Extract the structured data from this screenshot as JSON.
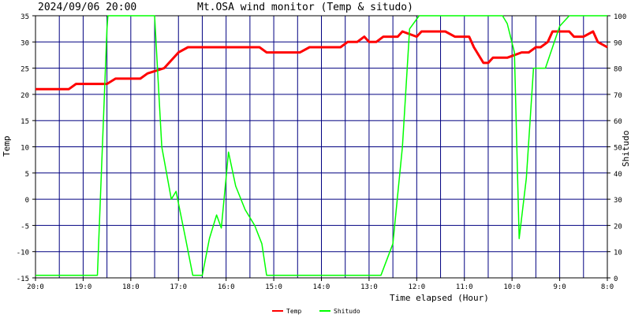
{
  "header": {
    "datetime": "2024/09/06 20:00",
    "title": "Mt.OSA wind monitor (Temp & situdo)"
  },
  "legend": {
    "items": [
      {
        "label": "Temp",
        "color": "#ff0000"
      },
      {
        "label": "Shitudo",
        "color": "#00ff00"
      }
    ]
  },
  "chart_data": {
    "type": "line",
    "title": "Mt.OSA wind monitor (Temp & situdo)",
    "xlabel": "Time elapsed (Hour)",
    "ylabel_left": "Temp",
    "ylabel_right": "Shitudo",
    "x_tick_labels": [
      "20:0",
      "19:0",
      "18:0",
      "17:0",
      "16:0",
      "15:0",
      "14:0",
      "13:0",
      "12:0",
      "11:0",
      "10:0",
      "9:0",
      "8:0"
    ],
    "xlim": [
      0,
      12
    ],
    "x_reversed_note": "",
    "ylim_left": [
      -15,
      35
    ],
    "y_ticks_left": [
      -15,
      -10,
      -5,
      0,
      5,
      10,
      15,
      20,
      25,
      30,
      35
    ],
    "ylim_right": [
      0,
      100
    ],
    "y_ticks_right": [
      0,
      10,
      20,
      30,
      40,
      50,
      60,
      70,
      80,
      90,
      100
    ],
    "grid": true,
    "legend_position": "bottom",
    "series": [
      {
        "name": "Temp",
        "axis": "left",
        "color": "#ff0000",
        "x": [
          0,
          0.7,
          0.85,
          1.5,
          1.68,
          2.2,
          2.35,
          2.7,
          3.0,
          3.2,
          3.65,
          4.1,
          4.2,
          4.7,
          4.85,
          5.1,
          5.3,
          5.55,
          5.75,
          5.9,
          6.0,
          6.15,
          6.25,
          6.4,
          6.55,
          6.75,
          6.9,
          7.0,
          7.15,
          7.3,
          7.5,
          7.55,
          7.6,
          7.7,
          8.0,
          8.1,
          8.3,
          8.5,
          8.6,
          8.8,
          8.9,
          9.1,
          9.2,
          9.4,
          9.5,
          9.6,
          9.7,
          9.8,
          9.9,
          10.2,
          10.35,
          10.5,
          10.6,
          10.75,
          10.85,
          11.0,
          11.2,
          11.3,
          11.5,
          11.7,
          11.8,
          12.0
        ],
        "y": [
          21,
          21,
          22,
          22,
          23,
          23,
          24,
          25,
          28,
          29,
          29,
          29,
          29,
          29,
          28,
          28,
          28,
          28,
          29,
          29,
          29,
          29,
          29,
          29,
          30,
          30,
          31,
          30,
          30,
          31,
          31,
          31,
          31,
          32,
          31,
          32,
          32,
          32,
          32,
          31,
          31,
          31,
          29,
          26,
          26,
          27,
          27,
          27,
          27,
          28,
          28,
          29,
          29,
          30,
          32,
          32,
          32,
          31,
          31,
          32,
          30,
          29
        ]
      },
      {
        "name": "Shitudo",
        "axis": "right",
        "color": "#00ff00",
        "x": [
          0,
          1.3,
          1.5,
          1.52,
          2.5,
          2.65,
          2.85,
          2.95,
          3.15,
          3.3,
          3.5,
          3.65,
          3.8,
          3.9,
          4.05,
          4.2,
          4.4,
          4.6,
          4.75,
          4.85,
          5.0,
          7.25,
          7.5,
          7.7,
          7.85,
          8.05,
          8.5,
          9.8,
          9.9,
          10.05,
          10.15,
          10.3,
          10.45,
          10.7,
          11.0,
          11.2,
          11.3,
          12.0
        ],
        "y": [
          1,
          1,
          95,
          100,
          100,
          50,
          30,
          33,
          15,
          1,
          1,
          15,
          24,
          19,
          48,
          35,
          26,
          20,
          13,
          1,
          1,
          1,
          13,
          50,
          95,
          100,
          100,
          100,
          97,
          86,
          15,
          38,
          80,
          80,
          96,
          100,
          100,
          100
        ]
      }
    ]
  }
}
